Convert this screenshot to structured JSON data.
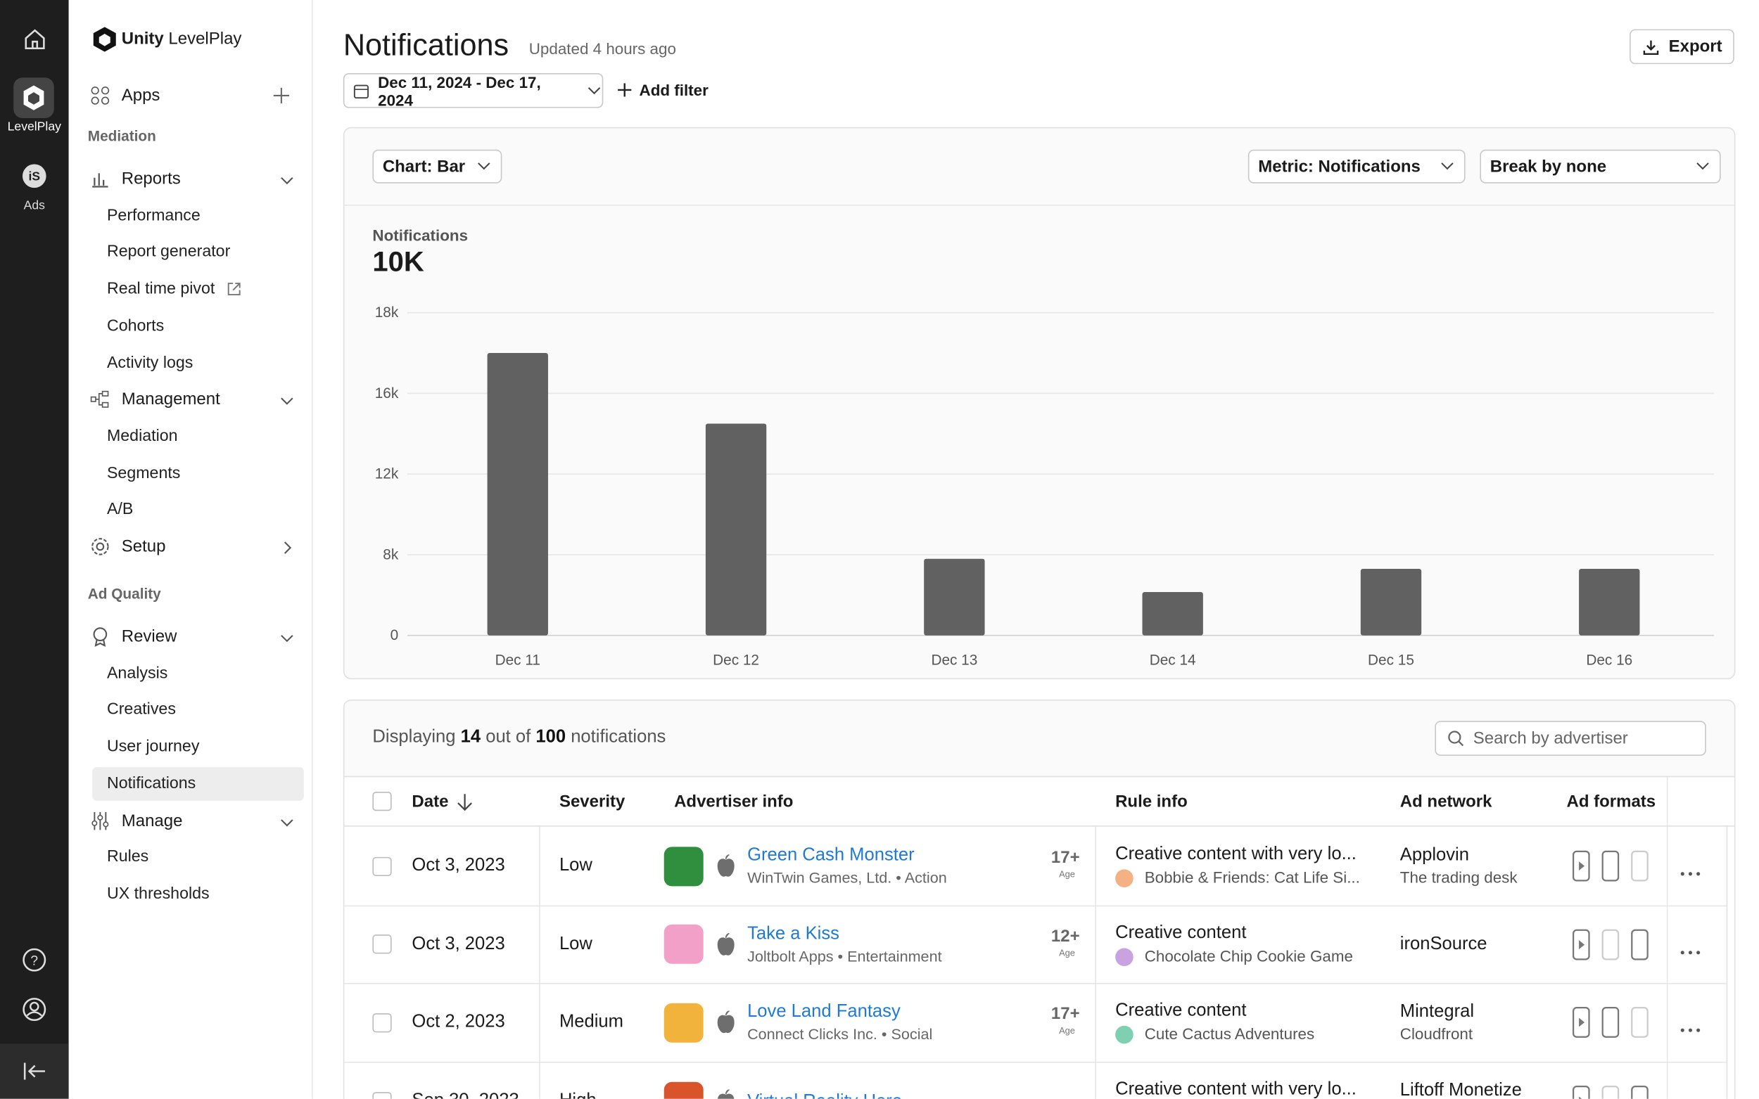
{
  "rail": {
    "levelplay": "LevelPlay",
    "ads": "Ads"
  },
  "brand": {
    "name": "Unity",
    "product": "LevelPlay"
  },
  "nav": {
    "apps": "Apps",
    "sections": [
      {
        "heading": "Mediation",
        "groups": [
          {
            "label": "Reports",
            "items": [
              "Performance",
              "Report generator",
              "Real time pivot",
              "Cohorts",
              "Activity logs"
            ]
          },
          {
            "label": "Management",
            "items": [
              "Mediation",
              "Segments",
              "A/B"
            ]
          },
          {
            "label": "Setup"
          }
        ]
      },
      {
        "heading": "Ad Quality",
        "groups": [
          {
            "label": "Review",
            "items": [
              "Analysis",
              "Creatives",
              "User journey",
              "Notifications"
            ]
          },
          {
            "label": "Manage",
            "items": [
              "Rules",
              "UX thresholds"
            ]
          }
        ]
      }
    ]
  },
  "header": {
    "title": "Notifications",
    "updated": "Updated 4 hours ago",
    "export": "Export",
    "date_range": "Dec 11, 2024 - Dec 17, 2024",
    "add_filter": "Add filter"
  },
  "controls": {
    "chart": "Chart: Bar",
    "metric": "Metric: Notifications",
    "break_by": "Break by none"
  },
  "chart_data": {
    "type": "bar",
    "y_label": "Notifications",
    "headline": "10K",
    "categories": [
      "Dec 11",
      "Dec 12",
      "Dec 13",
      "Dec 14",
      "Dec 15",
      "Dec 16"
    ],
    "values": [
      17000,
      14500,
      7600,
      4300,
      6600,
      6600
    ],
    "color": "#616161",
    "ylim": [
      0,
      18000
    ],
    "yticks": [
      0,
      {
        "value": 8000,
        "label": "8k"
      },
      {
        "value": 12000,
        "label": "12k"
      },
      {
        "value": 16000,
        "label": "16k"
      },
      {
        "value": 18000,
        "label": "18k"
      }
    ],
    "grid": true
  },
  "table": {
    "summary": {
      "prefix": "Displaying",
      "shown": 14,
      "middle": "out of",
      "total": 100,
      "suffix": "notifications"
    },
    "search": "Search by advertiser",
    "separator": "•",
    "age_caption": "Age",
    "columns": [
      "Date",
      "Severity",
      "Advertiser info",
      "Rule info",
      "Ad network",
      "Ad formats"
    ],
    "rows": [
      {
        "date": "Oct 3, 2023",
        "severity": "Low",
        "app": "Green Cash Monster",
        "publisher": "WinTwin Games, Ltd.",
        "genre": "Action",
        "age": "17+",
        "rule": "Creative content with very lo...",
        "rule_app": "Bobbie & Friends: Cat Life Si...",
        "network": "Applovin",
        "network_detail": "The trading desk"
      },
      {
        "date": "Oct 3, 2023",
        "severity": "Low",
        "app": "Take a Kiss",
        "publisher": "Joltbolt Apps",
        "genre": "Entertainment",
        "age": "12+",
        "rule": "Creative content",
        "rule_app": "Chocolate Chip Cookie Game",
        "network": "ironSource"
      },
      {
        "date": "Oct 2, 2023",
        "severity": "Medium",
        "app": "Love Land Fantasy",
        "publisher": "Connect Clicks Inc.",
        "genre": "Social",
        "age": "17+",
        "rule": "Creative content",
        "rule_app": "Cute Cactus Adventures",
        "network": "Mintegral",
        "network_detail": "Cloudfront"
      },
      {
        "date": "Sep 30, 2023",
        "severity": "High",
        "app": "Virtual Reality Hero",
        "rule": "Creative content with very lo...",
        "network": "Liftoff Monetize"
      }
    ]
  }
}
